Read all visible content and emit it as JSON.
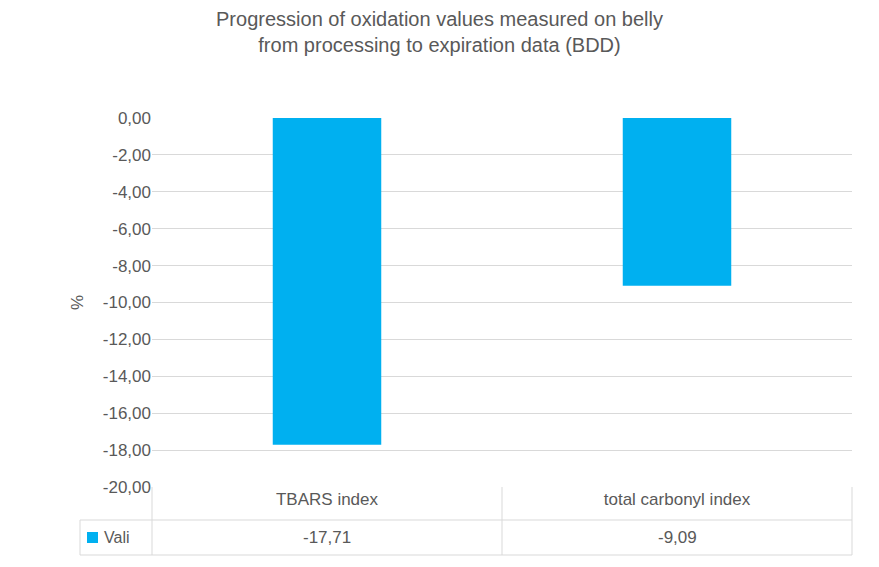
{
  "chart_data": {
    "type": "bar",
    "title": "Progression of oxidation values measured on belly\nfrom processing to expiration data (BDD)",
    "y_label": "%",
    "categories": [
      "TBARS index",
      "total carbonyl index"
    ],
    "series": [
      {
        "name": "Vali",
        "color": "#00b0f0",
        "values": [
          -17.71,
          -9.09
        ],
        "value_labels": [
          "-17,71",
          "-9,09"
        ]
      }
    ],
    "ylim": [
      -20,
      0
    ],
    "yticks": [
      {
        "value": 0,
        "label": "0,00"
      },
      {
        "value": -2,
        "label": "-2,00"
      },
      {
        "value": -4,
        "label": "-4,00"
      },
      {
        "value": -6,
        "label": "-6,00"
      },
      {
        "value": -8,
        "label": "-8,00"
      },
      {
        "value": -10,
        "label": "-10,00"
      },
      {
        "value": -12,
        "label": "-12,00"
      },
      {
        "value": -14,
        "label": "-14,00"
      },
      {
        "value": -16,
        "label": "-16,00"
      },
      {
        "value": -18,
        "label": "-18,00"
      },
      {
        "value": -20,
        "label": "-20,00"
      }
    ],
    "grid": true
  }
}
